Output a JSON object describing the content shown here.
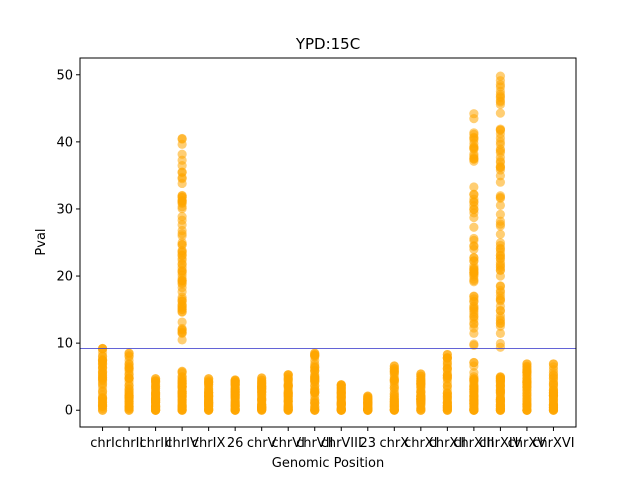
{
  "chart_data": {
    "type": "scatter",
    "title": "YPD:15C",
    "xlabel": "Genomic Position",
    "ylabel": "Pval",
    "ylim": [
      -2.5,
      52.5
    ],
    "yticks": [
      0,
      10,
      20,
      30,
      40,
      50
    ],
    "grid": false,
    "legend": "none",
    "categories": [
      "chrI",
      "chrII",
      "chrIII",
      "chrIV",
      "chrIX",
      "26",
      "chrV",
      "chrVI",
      "chrVII",
      "chrVIII",
      "23",
      "chrX",
      "chrXI",
      "chrXII",
      "chrXIII",
      "chrXIV",
      "chrXV",
      "chrXVI"
    ],
    "max_values": [
      9.2,
      8.5,
      4.7,
      40.5,
      4.7,
      4.5,
      4.8,
      5.3,
      8.5,
      3.8,
      2.1,
      6.6,
      5.4,
      8.3,
      44.2,
      49.8,
      6.9,
      6.9
    ],
    "threshold": {
      "value": 9.2,
      "color": "#3c3ccc"
    },
    "colors": {
      "points": "#ffa500"
    }
  }
}
